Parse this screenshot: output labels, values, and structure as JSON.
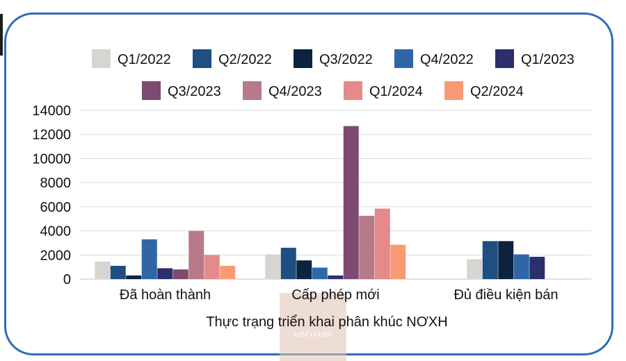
{
  "chart_data": {
    "type": "bar",
    "title": "",
    "xlabel": "Thực trạng triển khai phân khúc NƠXH",
    "ylabel": "",
    "ylim": [
      0,
      14000
    ],
    "yticks": [
      0,
      2000,
      4000,
      6000,
      8000,
      10000,
      12000,
      14000
    ],
    "grid": true,
    "legend_position": "top",
    "categories": [
      "Đã hoàn thành",
      "Cấp phép mới",
      "Đủ điều kiện bán"
    ],
    "series": [
      {
        "name": "Q1/2022",
        "color": "#d6d6d0",
        "values": [
          1450,
          2050,
          1650
        ]
      },
      {
        "name": "Q2/2022",
        "color": "#1f4e80",
        "values": [
          1100,
          2600,
          3150
        ]
      },
      {
        "name": "Q3/2022",
        "color": "#0c2340",
        "values": [
          300,
          1550,
          3150
        ]
      },
      {
        "name": "Q4/2022",
        "color": "#2f67a6",
        "values": [
          3300,
          950,
          2050
        ]
      },
      {
        "name": "Q1/2023",
        "color": "#2b2f6b",
        "values": [
          900,
          300,
          1850
        ]
      },
      {
        "name": "Q3/2023",
        "color": "#7e4a70",
        "values": [
          800,
          12700,
          null
        ]
      },
      {
        "name": "Q4/2023",
        "color": "#b87a88",
        "values": [
          4000,
          5250,
          null
        ]
      },
      {
        "name": "Q1/2024",
        "color": "#e48a8a",
        "values": [
          2000,
          5850,
          null
        ]
      },
      {
        "name": "Q2/2024",
        "color": "#f89b74",
        "values": [
          1100,
          2850,
          null
        ]
      }
    ]
  },
  "watermark": {
    "text": "KIM OANH"
  }
}
